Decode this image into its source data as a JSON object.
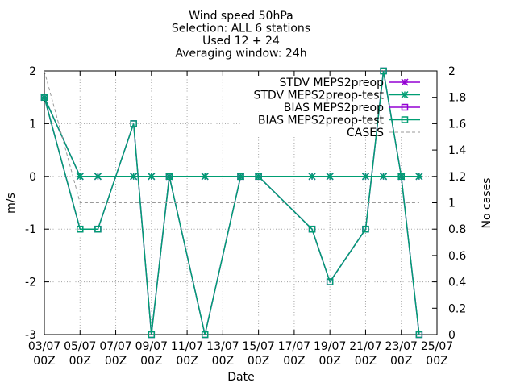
{
  "chart_data": {
    "type": "line",
    "title_lines": [
      "Wind speed 50hPa",
      "Selection: ALL      6 stations",
      "Used 12 + 24",
      "Averaging window: 24h"
    ],
    "xlabel": "Date",
    "ylabel": "m/s",
    "y2label": "No cases",
    "xlim": [
      "2023-07-03 00Z",
      "2023-07-25 00Z"
    ],
    "ylim": [
      -3,
      2
    ],
    "y2lim": [
      0,
      2
    ],
    "x_tick_labels": [
      [
        "03/07",
        "00Z"
      ],
      [
        "05/07",
        "00Z"
      ],
      [
        "07/07",
        "00Z"
      ],
      [
        "09/07",
        "00Z"
      ],
      [
        "11/07",
        "00Z"
      ],
      [
        "13/07",
        "00Z"
      ],
      [
        "15/07",
        "00Z"
      ],
      [
        "17/07",
        "00Z"
      ],
      [
        "19/07",
        "00Z"
      ],
      [
        "21/07",
        "00Z"
      ],
      [
        "23/07",
        "00Z"
      ],
      [
        "25/07",
        "00Z"
      ]
    ],
    "y_ticks": [
      -3,
      -2,
      -1,
      0,
      1,
      2
    ],
    "y2_ticks": [
      "0",
      "0.2",
      "0.4",
      "0.6",
      "0.8",
      "1",
      "1.2",
      "1.4",
      "1.6",
      "1.8",
      "2"
    ],
    "grid": "dotted, partial",
    "legend_position": "top-right",
    "series": [
      {
        "name": "STDV MEPS2preop",
        "color": "#9400d3",
        "marker": "star",
        "axis": "y",
        "x": [
          "03/07 00Z",
          "05/07 00Z",
          "06/07 00Z",
          "08/07 00Z",
          "09/07 00Z",
          "10/07 00Z",
          "12/07 00Z",
          "14/07 00Z",
          "15/07 00Z",
          "18/07 00Z",
          "19/07 00Z",
          "21/07 00Z",
          "22/07 00Z",
          "23/07 00Z",
          "24/07 00Z"
        ],
        "values": [
          1.5,
          0,
          0,
          0,
          0,
          0,
          0,
          0,
          0,
          0,
          0,
          0,
          0,
          0,
          0
        ]
      },
      {
        "name": "STDV MEPS2preop-test",
        "color": "#009e73",
        "marker": "star",
        "axis": "y",
        "x": [
          "03/07 00Z",
          "05/07 00Z",
          "06/07 00Z",
          "08/07 00Z",
          "09/07 00Z",
          "10/07 00Z",
          "12/07 00Z",
          "14/07 00Z",
          "15/07 00Z",
          "18/07 00Z",
          "19/07 00Z",
          "21/07 00Z",
          "22/07 00Z",
          "23/07 00Z",
          "24/07 00Z"
        ],
        "values": [
          1.5,
          0,
          0,
          0,
          0,
          0,
          0,
          0,
          0,
          0,
          0,
          0,
          0,
          0,
          0
        ]
      },
      {
        "name": "BIAS MEPS2preop",
        "color": "#9400d3",
        "marker": "square",
        "axis": "y",
        "x": [
          "03/07 00Z",
          "05/07 00Z",
          "06/07 00Z",
          "08/07 00Z",
          "09/07 00Z",
          "10/07 00Z",
          "12/07 00Z",
          "14/07 00Z",
          "15/07 00Z",
          "18/07 00Z",
          "19/07 00Z",
          "21/07 00Z",
          "22/07 00Z",
          "23/07 00Z",
          "24/07 00Z"
        ],
        "values": [
          1.5,
          -1,
          -1,
          1,
          -3,
          0,
          -3,
          0,
          0,
          -1,
          -2,
          -1,
          2,
          0,
          -3
        ]
      },
      {
        "name": "BIAS MEPS2preop-test",
        "color": "#009e73",
        "marker": "square",
        "axis": "y",
        "x": [
          "03/07 00Z",
          "05/07 00Z",
          "06/07 00Z",
          "08/07 00Z",
          "09/07 00Z",
          "10/07 00Z",
          "12/07 00Z",
          "14/07 00Z",
          "15/07 00Z",
          "18/07 00Z",
          "19/07 00Z",
          "21/07 00Z",
          "22/07 00Z",
          "23/07 00Z",
          "24/07 00Z"
        ],
        "values": [
          1.5,
          -1,
          -1,
          1,
          -3,
          0,
          -3,
          0,
          0,
          -1,
          -2,
          -1,
          2,
          0,
          -3
        ]
      },
      {
        "name": "CASES",
        "color": "#999999",
        "marker": "none",
        "dashed": true,
        "axis": "y2",
        "x": [
          "03/07 00Z",
          "05/07 00Z",
          "06/07 00Z",
          "08/07 00Z",
          "09/07 00Z",
          "10/07 00Z",
          "12/07 00Z",
          "14/07 00Z",
          "15/07 00Z",
          "18/07 00Z",
          "19/07 00Z",
          "21/07 00Z",
          "22/07 00Z",
          "23/07 00Z",
          "24/07 00Z"
        ],
        "values": [
          2,
          1,
          1,
          1,
          1,
          1,
          1,
          1,
          1,
          1,
          1,
          1,
          1,
          1,
          1
        ]
      }
    ]
  }
}
